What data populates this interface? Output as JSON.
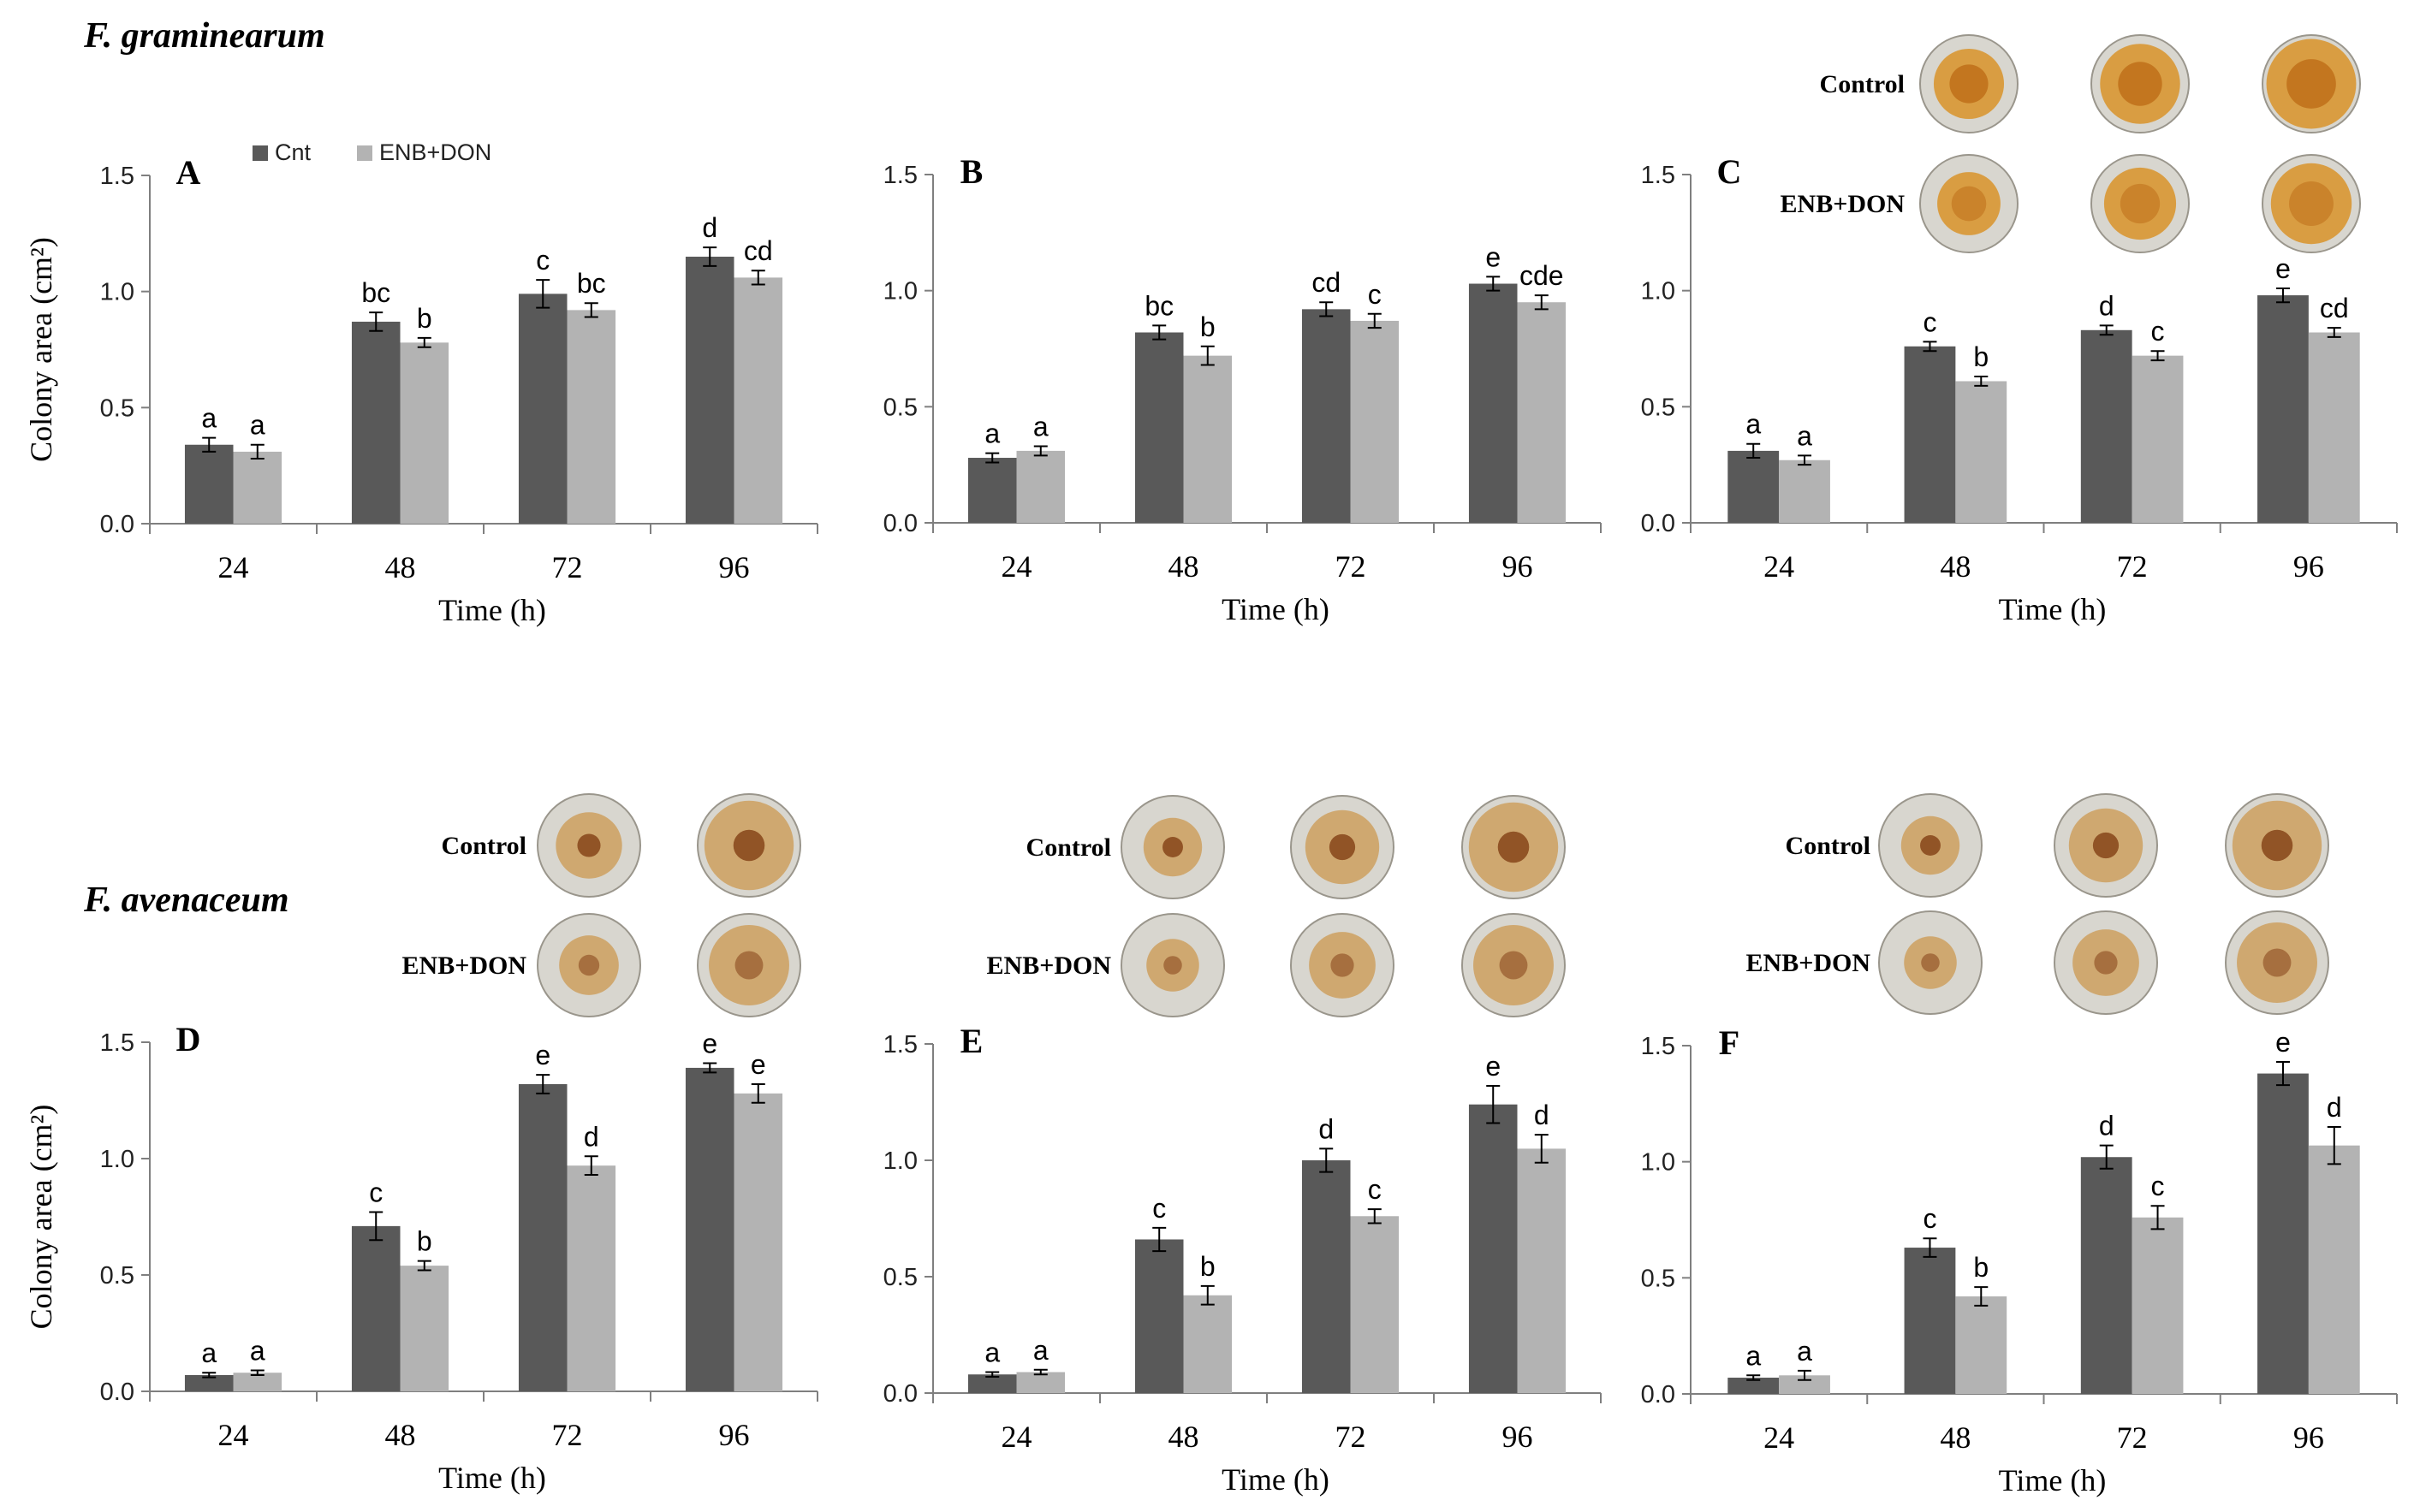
{
  "figure": {
    "species_top": "F. graminearum",
    "species_bottom": "F. avenaceum",
    "colors": {
      "cnt": "#595959",
      "enb_don": "#b3b3b3",
      "axis": "#7f7f7f",
      "dish_ring": "#d8d6cf"
    }
  },
  "chart_data": [
    {
      "panel": "A",
      "type": "bar",
      "species": "F. graminearum",
      "categories": [
        "24",
        "48",
        "72",
        "96"
      ],
      "xlabel": "Time (h)",
      "ylabel": "Colony area (cm²)",
      "ylim": [
        0,
        1.5
      ],
      "yticks": [
        "0.0",
        "0.5",
        "1.0",
        "1.5"
      ],
      "series": [
        {
          "name": "Cnt",
          "values": [
            0.34,
            0.87,
            0.99,
            1.15
          ],
          "errors": [
            0.03,
            0.04,
            0.06,
            0.04
          ],
          "letters": [
            "a",
            "bc",
            "c",
            "d"
          ]
        },
        {
          "name": "ENB+DON",
          "values": [
            0.31,
            0.78,
            0.92,
            1.06
          ],
          "errors": [
            0.03,
            0.02,
            0.03,
            0.03
          ],
          "letters": [
            "a",
            "b",
            "bc",
            "cd"
          ]
        }
      ],
      "legend": [
        "Cnt",
        "ENB+DON"
      ],
      "legend_position": "top",
      "dish_labels": [],
      "dish_count": 0
    },
    {
      "panel": "B",
      "type": "bar",
      "species": "F. graminearum",
      "categories": [
        "24",
        "48",
        "72",
        "96"
      ],
      "xlabel": "Time (h)",
      "ylabel": "",
      "ylim": [
        0,
        1.5
      ],
      "yticks": [
        "0.0",
        "0.5",
        "1.0",
        "1.5"
      ],
      "series": [
        {
          "name": "Cnt",
          "values": [
            0.28,
            0.82,
            0.92,
            1.03
          ],
          "errors": [
            0.02,
            0.03,
            0.03,
            0.03
          ],
          "letters": [
            "a",
            "bc",
            "cd",
            "e"
          ]
        },
        {
          "name": "ENB+DON",
          "values": [
            0.31,
            0.72,
            0.87,
            0.95
          ],
          "errors": [
            0.02,
            0.04,
            0.03,
            0.03
          ],
          "letters": [
            "a",
            "b",
            "c",
            "cde"
          ]
        }
      ],
      "dish_labels": [],
      "dish_count": 0
    },
    {
      "panel": "C",
      "type": "bar",
      "species": "F. graminearum",
      "categories": [
        "24",
        "48",
        "72",
        "96"
      ],
      "xlabel": "Time (h)",
      "ylabel": "",
      "ylim": [
        0,
        1.5
      ],
      "yticks": [
        "0.0",
        "0.5",
        "1.0",
        "1.5"
      ],
      "series": [
        {
          "name": "Cnt",
          "values": [
            0.31,
            0.76,
            0.83,
            0.98
          ],
          "errors": [
            0.03,
            0.02,
            0.02,
            0.03
          ],
          "letters": [
            "a",
            "c",
            "d",
            "e"
          ]
        },
        {
          "name": "ENB+DON",
          "values": [
            0.27,
            0.61,
            0.72,
            0.82
          ],
          "errors": [
            0.02,
            0.02,
            0.02,
            0.02
          ],
          "letters": [
            "a",
            "b",
            "c",
            "cd"
          ]
        }
      ],
      "dish_labels": [
        "Control",
        "ENB+DON"
      ],
      "dish_count": 3
    },
    {
      "panel": "D",
      "type": "bar",
      "species": "F. avenaceum",
      "categories": [
        "24",
        "48",
        "72",
        "96"
      ],
      "xlabel": "Time (h)",
      "ylabel": "Colony area (cm²)",
      "ylim": [
        0,
        1.5
      ],
      "yticks": [
        "0.0",
        "0.5",
        "1.0",
        "1.5"
      ],
      "series": [
        {
          "name": "Cnt",
          "values": [
            0.07,
            0.71,
            1.32,
            1.39
          ],
          "errors": [
            0.01,
            0.06,
            0.04,
            0.02
          ],
          "letters": [
            "a",
            "c",
            "e",
            "e"
          ]
        },
        {
          "name": "ENB+DON",
          "values": [
            0.08,
            0.54,
            0.97,
            1.28
          ],
          "errors": [
            0.01,
            0.02,
            0.04,
            0.04
          ],
          "letters": [
            "a",
            "b",
            "d",
            "e"
          ]
        }
      ],
      "dish_labels": [
        "Control",
        "ENB+DON"
      ],
      "dish_count": 2
    },
    {
      "panel": "E",
      "type": "bar",
      "species": "F. avenaceum",
      "categories": [
        "24",
        "48",
        "72",
        "96"
      ],
      "xlabel": "Time (h)",
      "ylabel": "",
      "ylim": [
        0,
        1.5
      ],
      "yticks": [
        "0.0",
        "0.5",
        "1.0",
        "1.5"
      ],
      "series": [
        {
          "name": "Cnt",
          "values": [
            0.08,
            0.66,
            1.0,
            1.24
          ],
          "errors": [
            0.01,
            0.05,
            0.05,
            0.08
          ],
          "letters": [
            "a",
            "c",
            "d",
            "e"
          ]
        },
        {
          "name": "ENB+DON",
          "values": [
            0.09,
            0.42,
            0.76,
            1.05
          ],
          "errors": [
            0.01,
            0.04,
            0.03,
            0.06
          ],
          "letters": [
            "a",
            "b",
            "c",
            "d"
          ]
        }
      ],
      "dish_labels": [
        "Control",
        "ENB+DON"
      ],
      "dish_count": 3
    },
    {
      "panel": "F",
      "type": "bar",
      "species": "F. avenaceum",
      "categories": [
        "24",
        "48",
        "72",
        "96"
      ],
      "xlabel": "Time (h)",
      "ylabel": "",
      "ylim": [
        0,
        1.5
      ],
      "yticks": [
        "0.0",
        "0.5",
        "1.0",
        "1.5"
      ],
      "series": [
        {
          "name": "Cnt",
          "values": [
            0.07,
            0.63,
            1.02,
            1.38
          ],
          "errors": [
            0.01,
            0.04,
            0.05,
            0.05
          ],
          "letters": [
            "a",
            "c",
            "d",
            "e"
          ]
        },
        {
          "name": "ENB+DON",
          "values": [
            0.08,
            0.42,
            0.76,
            1.07
          ],
          "errors": [
            0.02,
            0.04,
            0.05,
            0.08
          ],
          "letters": [
            "a",
            "b",
            "c",
            "d"
          ]
        }
      ],
      "dish_labels": [
        "Control",
        "ENB+DON"
      ],
      "dish_count": 3
    }
  ]
}
